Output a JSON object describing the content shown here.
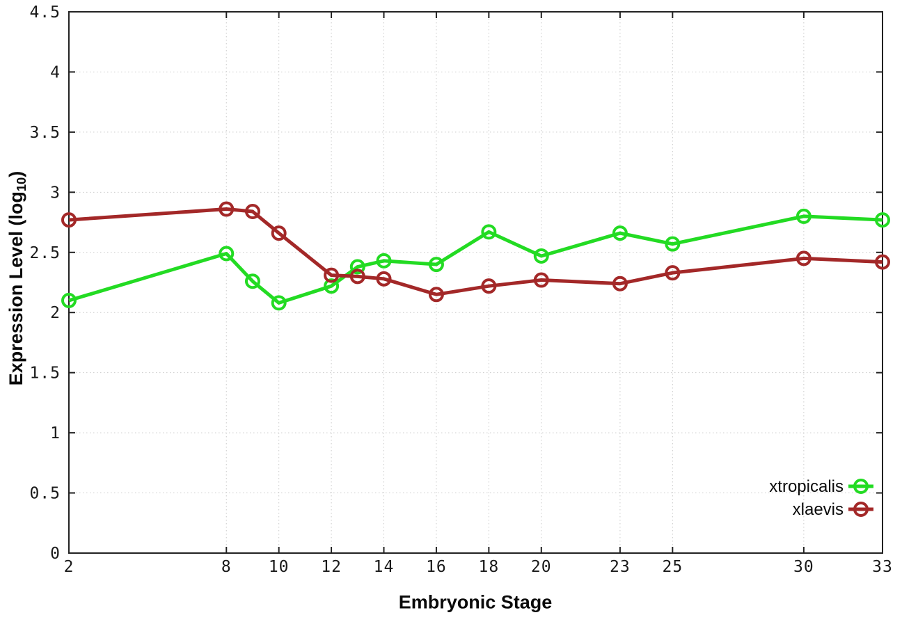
{
  "chart_data": {
    "type": "line",
    "title": "",
    "xlabel": "Embryonic Stage",
    "ylabel": "Expression Level (log10)",
    "ylabel_parts": {
      "prefix": "Expression Level (log",
      "subscript": "10",
      "suffix": ")"
    },
    "x": [
      2,
      8,
      9,
      10,
      12,
      13,
      14,
      16,
      18,
      20,
      23,
      25,
      30,
      33
    ],
    "xlim": [
      2,
      33
    ],
    "ylim": [
      0,
      4.5
    ],
    "x_ticks": {
      "values": [
        2,
        8,
        10,
        12,
        14,
        16,
        18,
        20,
        23,
        25,
        30,
        33
      ],
      "labels": [
        "2",
        "8",
        "10",
        "12",
        "14",
        "16",
        "18",
        "20",
        "23",
        "25",
        "30",
        "33"
      ]
    },
    "y_ticks": {
      "values": [
        0,
        0.5,
        1,
        1.5,
        2,
        2.5,
        3,
        3.5,
        4,
        4.5
      ],
      "labels": [
        "0",
        "0.5",
        "1",
        "1.5",
        "2",
        "2.5",
        "3",
        "3.5",
        "4",
        "4.5"
      ]
    },
    "grid": true,
    "legend_position": "bottom-right-inside",
    "series": [
      {
        "name": "xtropicalis",
        "color": "#23DB23",
        "marker": "open-circle",
        "values": [
          2.1,
          2.49,
          2.26,
          2.08,
          2.22,
          2.38,
          2.43,
          2.4,
          2.67,
          2.47,
          2.66,
          2.57,
          2.8,
          2.77
        ]
      },
      {
        "name": "xlaevis",
        "color": "#A32828",
        "marker": "open-circle",
        "values": [
          2.77,
          2.86,
          2.84,
          2.66,
          2.31,
          2.3,
          2.28,
          2.15,
          2.22,
          2.27,
          2.24,
          2.33,
          2.45,
          2.42
        ]
      }
    ]
  },
  "colors": {
    "background": "#ffffff",
    "plot_border": "#222222",
    "grid": "#c9c9c9",
    "tick_text": "#1a1a1a"
  }
}
